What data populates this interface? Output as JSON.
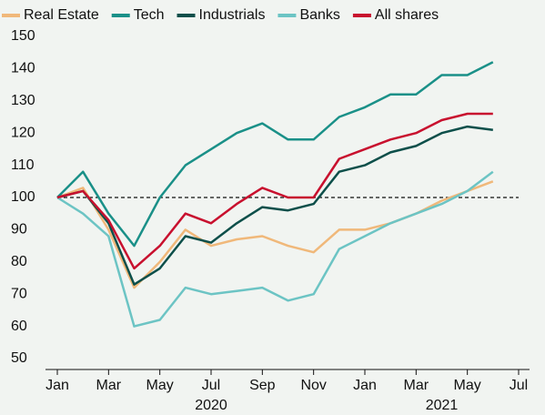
{
  "chart_data": {
    "type": "line",
    "x": [
      "2020-01",
      "2020-02",
      "2020-03",
      "2020-04",
      "2020-05",
      "2020-06",
      "2020-07",
      "2020-08",
      "2020-09",
      "2020-10",
      "2020-11",
      "2020-12",
      "2021-01",
      "2021-02",
      "2021-03",
      "2021-04",
      "2021-05",
      "2021-06"
    ],
    "series": [
      {
        "name": "Real Estate",
        "color": "#f0b87a",
        "values": [
          100,
          103,
          90,
          72,
          80,
          90,
          85,
          87,
          88,
          85,
          83,
          90,
          90,
          92,
          95,
          99,
          102,
          105
        ]
      },
      {
        "name": "Tech",
        "color": "#1a9088",
        "values": [
          100,
          108,
          95,
          85,
          100,
          110,
          115,
          120,
          123,
          118,
          118,
          125,
          128,
          132,
          132,
          138,
          138,
          142
        ]
      },
      {
        "name": "Industrials",
        "color": "#0d4f4a",
        "values": [
          100,
          102,
          92,
          73,
          78,
          88,
          86,
          92,
          97,
          96,
          98,
          108,
          110,
          114,
          116,
          120,
          122,
          121
        ]
      },
      {
        "name": "Banks",
        "color": "#6cc4c4",
        "values": [
          100,
          95,
          88,
          60,
          62,
          72,
          70,
          71,
          72,
          68,
          70,
          84,
          88,
          92,
          95,
          98,
          102,
          108
        ]
      },
      {
        "name": "All shares",
        "color": "#c8102e",
        "values": [
          100,
          102,
          93,
          78,
          85,
          95,
          92,
          98,
          103,
          100,
          100,
          112,
          115,
          118,
          120,
          124,
          126,
          126
        ]
      }
    ],
    "ylim": [
      50,
      150
    ],
    "yticks": [
      50,
      60,
      70,
      80,
      90,
      100,
      110,
      120,
      130,
      140,
      150
    ],
    "xlim": [
      "2020-01",
      "2021-07"
    ],
    "xticks": [
      {
        "value": "2020-01",
        "label": "Jan"
      },
      {
        "value": "2020-03",
        "label": "Mar"
      },
      {
        "value": "2020-05",
        "label": "May"
      },
      {
        "value": "2020-07",
        "label": "Jul"
      },
      {
        "value": "2020-09",
        "label": "Sep"
      },
      {
        "value": "2020-11",
        "label": "Nov"
      },
      {
        "value": "2021-01",
        "label": "Jan"
      },
      {
        "value": "2021-03",
        "label": "Mar"
      },
      {
        "value": "2021-05",
        "label": "May"
      },
      {
        "value": "2021-07",
        "label": "Jul"
      }
    ],
    "year_labels": [
      {
        "value": "2020-07",
        "label": "2020"
      },
      {
        "value": "2021-04",
        "label": "2021"
      }
    ],
    "reference_line": 100,
    "legend": "top"
  }
}
